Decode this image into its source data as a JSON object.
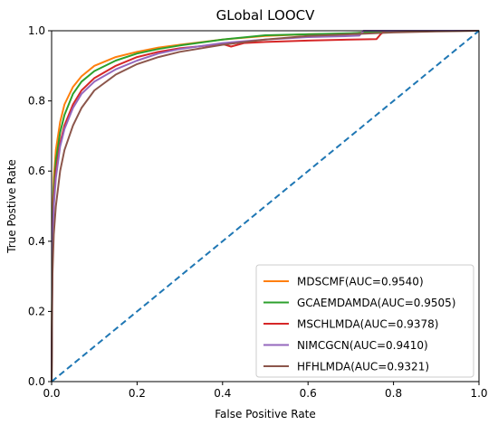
{
  "chart_data": {
    "type": "line",
    "title": "GLobal LOOCV",
    "xlabel": "False Positive Rate",
    "ylabel": "True Postive Rate",
    "xlim": [
      0,
      1
    ],
    "ylim": [
      0,
      1
    ],
    "xticks": [
      "0.0",
      "0.2",
      "0.4",
      "0.6",
      "0.8",
      "1.0"
    ],
    "yticks": [
      "0.0",
      "0.2",
      "0.4",
      "0.6",
      "0.8",
      "1.0"
    ],
    "grid": false,
    "legend_position": "lower-right",
    "series": [
      {
        "name": "MDSCMF(AUC=0.9540)",
        "color": "#ff7f0e",
        "x": [
          0,
          0.002,
          0.005,
          0.01,
          0.02,
          0.03,
          0.05,
          0.07,
          0.1,
          0.15,
          0.2,
          0.25,
          0.3,
          0.4,
          0.5,
          0.6,
          0.7,
          0.73,
          0.78,
          0.85,
          1.0
        ],
        "y": [
          0,
          0.45,
          0.58,
          0.66,
          0.74,
          0.79,
          0.84,
          0.87,
          0.9,
          0.925,
          0.94,
          0.952,
          0.96,
          0.975,
          0.985,
          0.99,
          0.992,
          0.995,
          1.0,
          1.0,
          1.0
        ]
      },
      {
        "name": "GCAEMDAMDA(AUC=0.9505)",
        "color": "#2ca02c",
        "x": [
          0,
          0.002,
          0.005,
          0.01,
          0.02,
          0.03,
          0.05,
          0.07,
          0.1,
          0.15,
          0.2,
          0.25,
          0.3,
          0.4,
          0.5,
          0.6,
          0.7,
          0.75,
          0.8,
          1.0
        ],
        "y": [
          0,
          0.42,
          0.55,
          0.63,
          0.71,
          0.76,
          0.82,
          0.855,
          0.885,
          0.915,
          0.935,
          0.948,
          0.958,
          0.975,
          0.987,
          0.99,
          0.993,
          0.996,
          1.0,
          1.0
        ]
      },
      {
        "name": "MSCHLMDA(AUC=0.9378)",
        "color": "#d62728",
        "x": [
          0,
          0.002,
          0.005,
          0.01,
          0.02,
          0.03,
          0.05,
          0.07,
          0.1,
          0.15,
          0.2,
          0.25,
          0.3,
          0.4,
          0.42,
          0.45,
          0.5,
          0.6,
          0.7,
          0.76,
          0.77,
          0.78,
          1.0
        ],
        "y": [
          0,
          0.4,
          0.52,
          0.6,
          0.68,
          0.73,
          0.79,
          0.83,
          0.865,
          0.9,
          0.925,
          0.94,
          0.95,
          0.962,
          0.955,
          0.965,
          0.968,
          0.972,
          0.975,
          0.976,
          0.99,
          1.0,
          1.0
        ]
      },
      {
        "name": "NIMCGCN(AUC=0.9410)",
        "color": "#9467bd",
        "x": [
          0,
          0.002,
          0.005,
          0.01,
          0.02,
          0.03,
          0.05,
          0.07,
          0.1,
          0.15,
          0.2,
          0.25,
          0.3,
          0.4,
          0.5,
          0.6,
          0.7,
          0.72,
          0.73,
          0.8,
          1.0
        ],
        "y": [
          0,
          0.38,
          0.5,
          0.58,
          0.67,
          0.72,
          0.78,
          0.82,
          0.855,
          0.89,
          0.915,
          0.935,
          0.948,
          0.965,
          0.975,
          0.982,
          0.985,
          0.986,
          1.0,
          1.0,
          1.0
        ]
      },
      {
        "name": "HFHLMDA(AUC=0.9321)",
        "color": "#8c564b",
        "x": [
          0,
          0.002,
          0.005,
          0.01,
          0.02,
          0.03,
          0.05,
          0.07,
          0.1,
          0.15,
          0.2,
          0.25,
          0.3,
          0.4,
          0.5,
          0.6,
          0.7,
          0.8,
          0.9,
          1.0
        ],
        "y": [
          0,
          0.3,
          0.42,
          0.5,
          0.6,
          0.66,
          0.73,
          0.78,
          0.83,
          0.875,
          0.905,
          0.925,
          0.94,
          0.96,
          0.975,
          0.985,
          0.99,
          0.995,
          0.998,
          1.0
        ]
      }
    ],
    "reference_line": {
      "color": "#1f77b4",
      "style": "dashed",
      "x": [
        0,
        1
      ],
      "y": [
        0,
        1
      ]
    }
  }
}
